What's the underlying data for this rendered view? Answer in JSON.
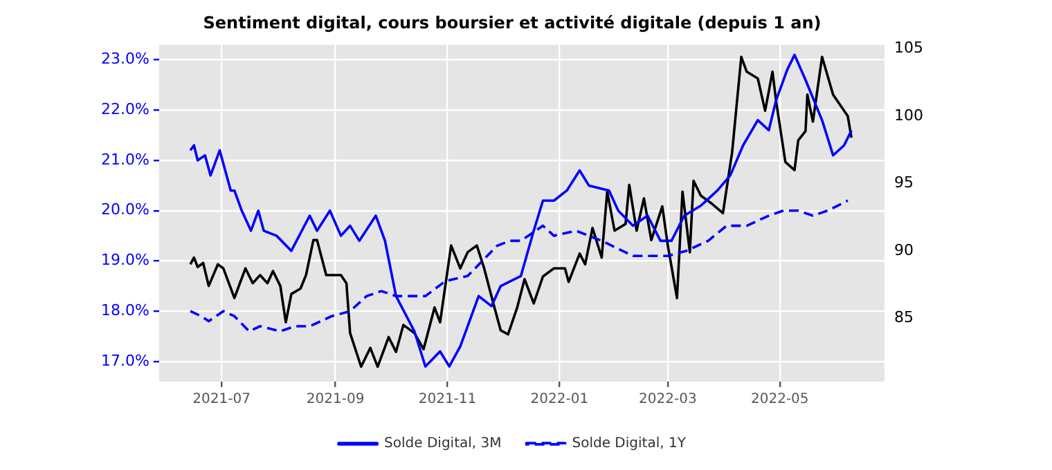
{
  "chart_data": {
    "type": "line",
    "title": "Sentiment digital, cours boursier et activité digitale (depuis 1 an)",
    "xlim": [
      "2021-05-28",
      "2022-06-27"
    ],
    "xticks": [
      "2021-07",
      "2021-09",
      "2021-11",
      "2022-01",
      "2022-03",
      "2022-05"
    ],
    "ylim": [
      16.6,
      23.3
    ],
    "yticks": [
      {
        "value": 17,
        "label": "17.0%"
      },
      {
        "value": 18,
        "label": "18.0%"
      },
      {
        "value": 19,
        "label": "19.0%"
      },
      {
        "value": 20,
        "label": "20.0%"
      },
      {
        "value": 21,
        "label": "21.0%"
      },
      {
        "value": 22,
        "label": "22.0%"
      },
      {
        "value": 23,
        "label": "23.0%"
      }
    ],
    "y2lim": [
      80.3,
      105.3
    ],
    "y2ticks": [
      85,
      90,
      95,
      100,
      105
    ],
    "grid": true,
    "legend": "bottom",
    "marker": "none",
    "series": [
      {
        "name": "Solde Digital, 3M",
        "color": "#0000ff",
        "line_style": "solid",
        "x": [
          "2021-06-14",
          "2021-06-16",
          "2021-06-18",
          "2021-06-22",
          "2021-06-25",
          "2021-06-30",
          "2021-07-06",
          "2021-07-08",
          "2021-07-12",
          "2021-07-17",
          "2021-07-21",
          "2021-07-24",
          "2021-07-31",
          "2021-08-08",
          "2021-08-18",
          "2021-08-22",
          "2021-08-29",
          "2021-09-04",
          "2021-09-09",
          "2021-09-14",
          "2021-09-23",
          "2021-09-28",
          "2021-10-04",
          "2021-10-14",
          "2021-10-20",
          "2021-10-28",
          "2021-11-02",
          "2021-11-08",
          "2021-11-18",
          "2021-11-25",
          "2021-11-30",
          "2021-12-11",
          "2021-12-18",
          "2021-12-23",
          "2021-12-29",
          "2022-01-05",
          "2022-01-12",
          "2022-01-17",
          "2022-01-28",
          "2022-02-02",
          "2022-02-10",
          "2022-02-18",
          "2022-02-25",
          "2022-03-03",
          "2022-03-10",
          "2022-03-19",
          "2022-03-28",
          "2022-04-04",
          "2022-04-11",
          "2022-04-19",
          "2022-04-25",
          "2022-04-29",
          "2022-05-05",
          "2022-05-09",
          "2022-05-15",
          "2022-05-24",
          "2022-05-30",
          "2022-06-05",
          "2022-06-09"
        ],
        "values": [
          21.2,
          21.3,
          21.0,
          21.1,
          20.7,
          21.2,
          20.4,
          20.4,
          20.0,
          19.6,
          20.0,
          19.6,
          19.5,
          19.2,
          19.9,
          19.6,
          20.0,
          19.5,
          19.7,
          19.4,
          19.9,
          19.4,
          18.3,
          17.6,
          16.9,
          17.2,
          16.9,
          17.3,
          18.3,
          18.1,
          18.5,
          18.7,
          19.6,
          20.2,
          20.2,
          20.4,
          20.8,
          20.5,
          20.4,
          20.0,
          19.7,
          19.9,
          19.4,
          19.4,
          19.9,
          20.1,
          20.4,
          20.7,
          21.3,
          21.8,
          21.6,
          22.2,
          22.8,
          23.1,
          22.6,
          21.8,
          21.1,
          21.3,
          21.6
        ]
      },
      {
        "name": "Solde Digital, 1Y",
        "color": "#0000ff",
        "line_style": "dashed",
        "x": [
          "2021-06-14",
          "2021-06-20",
          "2021-06-24",
          "2021-07-02",
          "2021-07-08",
          "2021-07-16",
          "2021-07-22",
          "2021-08-02",
          "2021-08-10",
          "2021-08-18",
          "2021-08-30",
          "2021-09-09",
          "2021-09-18",
          "2021-09-26",
          "2021-10-04",
          "2021-10-20",
          "2021-10-31",
          "2021-11-12",
          "2021-11-20",
          "2021-11-28",
          "2021-12-05",
          "2021-12-11",
          "2021-12-23",
          "2021-12-29",
          "2022-01-10",
          "2022-01-24",
          "2022-02-10",
          "2022-02-20",
          "2022-03-01",
          "2022-03-11",
          "2022-03-23",
          "2022-04-02",
          "2022-04-13",
          "2022-04-25",
          "2022-05-03",
          "2022-05-11",
          "2022-05-19",
          "2022-05-27",
          "2022-06-07"
        ],
        "values": [
          18.0,
          17.9,
          17.8,
          18.0,
          17.9,
          17.6,
          17.7,
          17.6,
          17.7,
          17.7,
          17.9,
          18.0,
          18.3,
          18.4,
          18.3,
          18.3,
          18.6,
          18.7,
          19.0,
          19.3,
          19.4,
          19.4,
          19.7,
          19.5,
          19.6,
          19.4,
          19.1,
          19.1,
          19.1,
          19.2,
          19.4,
          19.7,
          19.7,
          19.9,
          20.0,
          20.0,
          19.9,
          20.0,
          20.2
        ]
      },
      {
        "color": "#000000",
        "axis": "y2",
        "line_style": "solid",
        "x": [
          "2021-06-14",
          "2021-06-16",
          "2021-06-18",
          "2021-06-21",
          "2021-06-24",
          "2021-06-29",
          "2021-07-02",
          "2021-07-08",
          "2021-07-14",
          "2021-07-18",
          "2021-07-22",
          "2021-07-26",
          "2021-07-29",
          "2021-08-02",
          "2021-08-05",
          "2021-08-08",
          "2021-08-13",
          "2021-08-16",
          "2021-08-20",
          "2021-08-22",
          "2021-08-27",
          "2021-09-04",
          "2021-09-07",
          "2021-09-09",
          "2021-09-15",
          "2021-09-20",
          "2021-09-24",
          "2021-09-30",
          "2021-10-04",
          "2021-10-08",
          "2021-10-14",
          "2021-10-19",
          "2021-10-25",
          "2021-10-28",
          "2021-11-03",
          "2021-11-08",
          "2021-11-12",
          "2021-11-17",
          "2021-11-21",
          "2021-11-26",
          "2021-11-30",
          "2021-12-04",
          "2021-12-09",
          "2021-12-13",
          "2021-12-18",
          "2021-12-23",
          "2021-12-29",
          "2022-01-04",
          "2022-01-06",
          "2022-01-12",
          "2022-01-15",
          "2022-01-19",
          "2022-01-24",
          "2022-01-27",
          "2022-01-31",
          "2022-02-06",
          "2022-02-08",
          "2022-02-12",
          "2022-02-16",
          "2022-02-20",
          "2022-02-26",
          "2022-03-01",
          "2022-03-06",
          "2022-03-09",
          "2022-03-13",
          "2022-03-15",
          "2022-03-19",
          "2022-03-25",
          "2022-03-31",
          "2022-04-05",
          "2022-04-10",
          "2022-04-13",
          "2022-04-19",
          "2022-04-23",
          "2022-04-27",
          "2022-04-29",
          "2022-05-04",
          "2022-05-09",
          "2022-05-11",
          "2022-05-15",
          "2022-05-16",
          "2022-05-19",
          "2022-05-24",
          "2022-05-30",
          "2022-06-07",
          "2022-06-09"
        ],
        "values": [
          89.0,
          89.5,
          88.8,
          89.1,
          87.4,
          89.0,
          88.7,
          86.5,
          88.7,
          87.6,
          88.2,
          87.6,
          88.5,
          87.4,
          84.7,
          86.8,
          87.2,
          88.2,
          90.8,
          90.8,
          88.2,
          88.2,
          87.6,
          83.9,
          81.4,
          82.8,
          81.4,
          83.6,
          82.5,
          84.5,
          83.9,
          82.7,
          85.8,
          84.7,
          90.4,
          88.7,
          89.9,
          90.4,
          88.7,
          86.1,
          84.1,
          83.8,
          85.8,
          87.9,
          86.1,
          88.1,
          88.7,
          88.7,
          87.7,
          89.8,
          89.0,
          91.7,
          89.5,
          94.4,
          91.5,
          92.0,
          94.9,
          91.5,
          93.9,
          90.8,
          93.3,
          90.4,
          86.5,
          94.4,
          89.9,
          95.2,
          94.1,
          93.5,
          92.8,
          97.3,
          104.4,
          103.3,
          102.8,
          100.4,
          103.3,
          101.1,
          96.6,
          96.0,
          98.2,
          98.9,
          101.6,
          99.6,
          104.4,
          101.6,
          100.0,
          98.4
        ]
      }
    ]
  }
}
